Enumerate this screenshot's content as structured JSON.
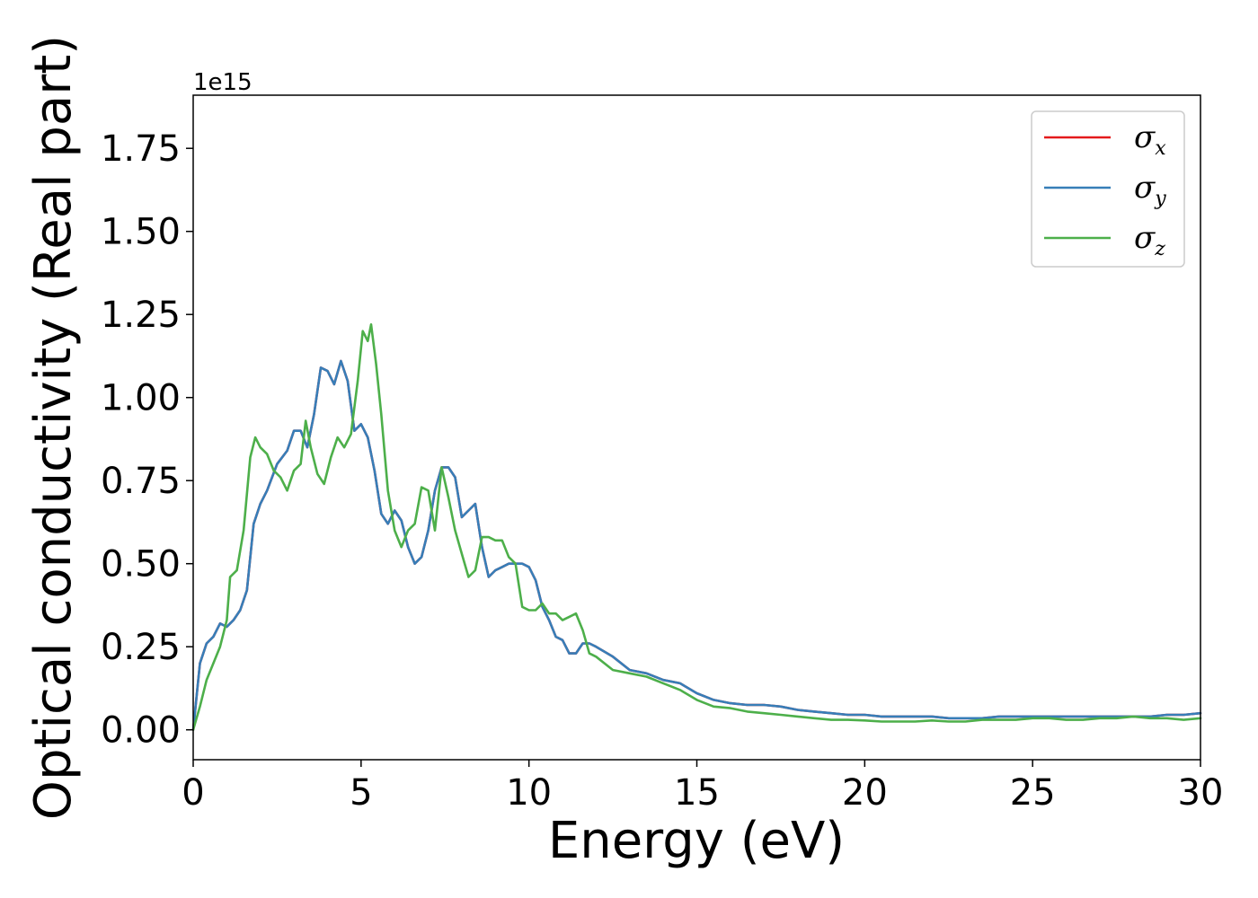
{
  "chart_data": {
    "type": "line",
    "xlabel": "Energy (eV)",
    "ylabel": "Optical conductivity (Real part)",
    "y_offset_text": "1e15",
    "xlim": [
      0,
      30
    ],
    "ylim": [
      -0.09,
      1.91
    ],
    "x_ticks": [
      0,
      5,
      10,
      15,
      20,
      25,
      30
    ],
    "x_tick_labels": [
      "0",
      "5",
      "10",
      "15",
      "20",
      "25",
      "30"
    ],
    "y_ticks": [
      0.0,
      0.25,
      0.5,
      0.75,
      1.0,
      1.25,
      1.5,
      1.75
    ],
    "y_tick_labels": [
      "0.00",
      "0.25",
      "0.50",
      "0.75",
      "1.00",
      "1.25",
      "1.50",
      "1.75"
    ],
    "grid": false,
    "legend_position": "top-right",
    "series": [
      {
        "name": "σx",
        "symbol": "σ",
        "subscript": "x",
        "color": "#e41a1c",
        "x": [
          0,
          0.2,
          0.4,
          0.6,
          0.8,
          1.0,
          1.2,
          1.4,
          1.6,
          1.8,
          2.0,
          2.2,
          2.5,
          2.8,
          3.0,
          3.2,
          3.4,
          3.6,
          3.8,
          4.0,
          4.2,
          4.4,
          4.6,
          4.8,
          5.0,
          5.2,
          5.4,
          5.6,
          5.8,
          6.0,
          6.2,
          6.4,
          6.6,
          6.8,
          7.0,
          7.2,
          7.4,
          7.6,
          7.8,
          8.0,
          8.2,
          8.4,
          8.6,
          8.8,
          9.0,
          9.2,
          9.4,
          9.6,
          9.8,
          10.0,
          10.2,
          10.4,
          10.6,
          10.8,
          11.0,
          11.2,
          11.4,
          11.6,
          11.8,
          12.0,
          12.5,
          13.0,
          13.5,
          14.0,
          14.5,
          15.0,
          15.5,
          16.0,
          16.5,
          17.0,
          17.5,
          18.0,
          18.5,
          19.0,
          19.5,
          20.0,
          20.5,
          21.0,
          21.5,
          22.0,
          22.5,
          23.0,
          23.5,
          24.0,
          24.5,
          25.0,
          25.5,
          26.0,
          26.5,
          27.0,
          27.5,
          28.0,
          28.5,
          29.0,
          29.5,
          30.0
        ],
        "y": [
          0.0,
          0.2,
          0.26,
          0.28,
          0.32,
          0.31,
          0.33,
          0.36,
          0.42,
          0.62,
          0.68,
          0.72,
          0.8,
          0.84,
          0.9,
          0.9,
          0.85,
          0.95,
          1.09,
          1.08,
          1.04,
          1.11,
          1.05,
          0.9,
          0.92,
          0.88,
          0.78,
          0.65,
          0.62,
          0.66,
          0.63,
          0.55,
          0.5,
          0.52,
          0.6,
          0.72,
          0.79,
          0.79,
          0.76,
          0.64,
          0.66,
          0.68,
          0.55,
          0.46,
          0.48,
          0.49,
          0.5,
          0.5,
          0.5,
          0.49,
          0.45,
          0.37,
          0.33,
          0.28,
          0.27,
          0.23,
          0.23,
          0.26,
          0.26,
          0.25,
          0.22,
          0.18,
          0.17,
          0.15,
          0.14,
          0.11,
          0.09,
          0.08,
          0.075,
          0.075,
          0.07,
          0.06,
          0.055,
          0.05,
          0.045,
          0.045,
          0.04,
          0.04,
          0.04,
          0.04,
          0.035,
          0.035,
          0.035,
          0.04,
          0.04,
          0.04,
          0.04,
          0.04,
          0.04,
          0.04,
          0.04,
          0.04,
          0.04,
          0.045,
          0.045,
          0.05
        ]
      },
      {
        "name": "σy",
        "symbol": "σ",
        "subscript": "y",
        "color": "#377eb8",
        "x": [
          0,
          0.2,
          0.4,
          0.6,
          0.8,
          1.0,
          1.2,
          1.4,
          1.6,
          1.8,
          2.0,
          2.2,
          2.5,
          2.8,
          3.0,
          3.2,
          3.4,
          3.6,
          3.8,
          4.0,
          4.2,
          4.4,
          4.6,
          4.8,
          5.0,
          5.2,
          5.4,
          5.6,
          5.8,
          6.0,
          6.2,
          6.4,
          6.6,
          6.8,
          7.0,
          7.2,
          7.4,
          7.6,
          7.8,
          8.0,
          8.2,
          8.4,
          8.6,
          8.8,
          9.0,
          9.2,
          9.4,
          9.6,
          9.8,
          10.0,
          10.2,
          10.4,
          10.6,
          10.8,
          11.0,
          11.2,
          11.4,
          11.6,
          11.8,
          12.0,
          12.5,
          13.0,
          13.5,
          14.0,
          14.5,
          15.0,
          15.5,
          16.0,
          16.5,
          17.0,
          17.5,
          18.0,
          18.5,
          19.0,
          19.5,
          20.0,
          20.5,
          21.0,
          21.5,
          22.0,
          22.5,
          23.0,
          23.5,
          24.0,
          24.5,
          25.0,
          25.5,
          26.0,
          26.5,
          27.0,
          27.5,
          28.0,
          28.5,
          29.0,
          29.5,
          30.0
        ],
        "y": [
          0.0,
          0.2,
          0.26,
          0.28,
          0.32,
          0.31,
          0.33,
          0.36,
          0.42,
          0.62,
          0.68,
          0.72,
          0.8,
          0.84,
          0.9,
          0.9,
          0.85,
          0.95,
          1.09,
          1.08,
          1.04,
          1.11,
          1.05,
          0.9,
          0.92,
          0.88,
          0.78,
          0.65,
          0.62,
          0.66,
          0.63,
          0.55,
          0.5,
          0.52,
          0.6,
          0.72,
          0.79,
          0.79,
          0.76,
          0.64,
          0.66,
          0.68,
          0.55,
          0.46,
          0.48,
          0.49,
          0.5,
          0.5,
          0.5,
          0.49,
          0.45,
          0.37,
          0.33,
          0.28,
          0.27,
          0.23,
          0.23,
          0.26,
          0.26,
          0.25,
          0.22,
          0.18,
          0.17,
          0.15,
          0.14,
          0.11,
          0.09,
          0.08,
          0.075,
          0.075,
          0.07,
          0.06,
          0.055,
          0.05,
          0.045,
          0.045,
          0.04,
          0.04,
          0.04,
          0.04,
          0.035,
          0.035,
          0.035,
          0.04,
          0.04,
          0.04,
          0.04,
          0.04,
          0.04,
          0.04,
          0.04,
          0.04,
          0.04,
          0.045,
          0.045,
          0.05
        ]
      },
      {
        "name": "σz",
        "symbol": "σ",
        "subscript": "z",
        "color": "#4daf4a",
        "x": [
          0,
          0.2,
          0.4,
          0.6,
          0.8,
          1.0,
          1.1,
          1.3,
          1.5,
          1.7,
          1.85,
          2.0,
          2.2,
          2.4,
          2.6,
          2.8,
          3.0,
          3.2,
          3.35,
          3.5,
          3.7,
          3.9,
          4.1,
          4.3,
          4.5,
          4.7,
          4.9,
          5.05,
          5.2,
          5.3,
          5.45,
          5.6,
          5.8,
          6.0,
          6.2,
          6.4,
          6.6,
          6.8,
          7.0,
          7.2,
          7.4,
          7.6,
          7.8,
          8.0,
          8.2,
          8.4,
          8.6,
          8.8,
          9.0,
          9.2,
          9.4,
          9.6,
          9.8,
          10.0,
          10.2,
          10.4,
          10.6,
          10.8,
          11.0,
          11.2,
          11.4,
          11.6,
          11.8,
          12.0,
          12.5,
          13.0,
          13.5,
          14.0,
          14.5,
          15.0,
          15.5,
          16.0,
          16.5,
          17.0,
          17.5,
          18.0,
          18.5,
          19.0,
          19.5,
          20.0,
          20.5,
          21.0,
          21.5,
          22.0,
          22.5,
          23.0,
          23.5,
          24.0,
          24.5,
          25.0,
          25.5,
          26.0,
          26.5,
          27.0,
          27.5,
          28.0,
          28.5,
          29.0,
          29.5,
          30.0
        ],
        "y": [
          0.0,
          0.07,
          0.15,
          0.2,
          0.25,
          0.33,
          0.46,
          0.48,
          0.6,
          0.82,
          0.88,
          0.85,
          0.83,
          0.78,
          0.76,
          0.72,
          0.78,
          0.8,
          0.93,
          0.85,
          0.77,
          0.74,
          0.82,
          0.88,
          0.85,
          0.89,
          1.05,
          1.2,
          1.17,
          1.22,
          1.1,
          0.95,
          0.72,
          0.6,
          0.55,
          0.6,
          0.62,
          0.73,
          0.72,
          0.6,
          0.79,
          0.7,
          0.6,
          0.53,
          0.46,
          0.48,
          0.58,
          0.58,
          0.57,
          0.57,
          0.52,
          0.5,
          0.37,
          0.36,
          0.36,
          0.38,
          0.35,
          0.35,
          0.33,
          0.34,
          0.35,
          0.3,
          0.23,
          0.22,
          0.18,
          0.17,
          0.16,
          0.14,
          0.12,
          0.09,
          0.07,
          0.065,
          0.055,
          0.05,
          0.045,
          0.04,
          0.035,
          0.03,
          0.03,
          0.028,
          0.025,
          0.025,
          0.025,
          0.028,
          0.025,
          0.025,
          0.03,
          0.03,
          0.03,
          0.035,
          0.035,
          0.03,
          0.03,
          0.035,
          0.035,
          0.04,
          0.035,
          0.035,
          0.03,
          0.035
        ]
      }
    ]
  }
}
